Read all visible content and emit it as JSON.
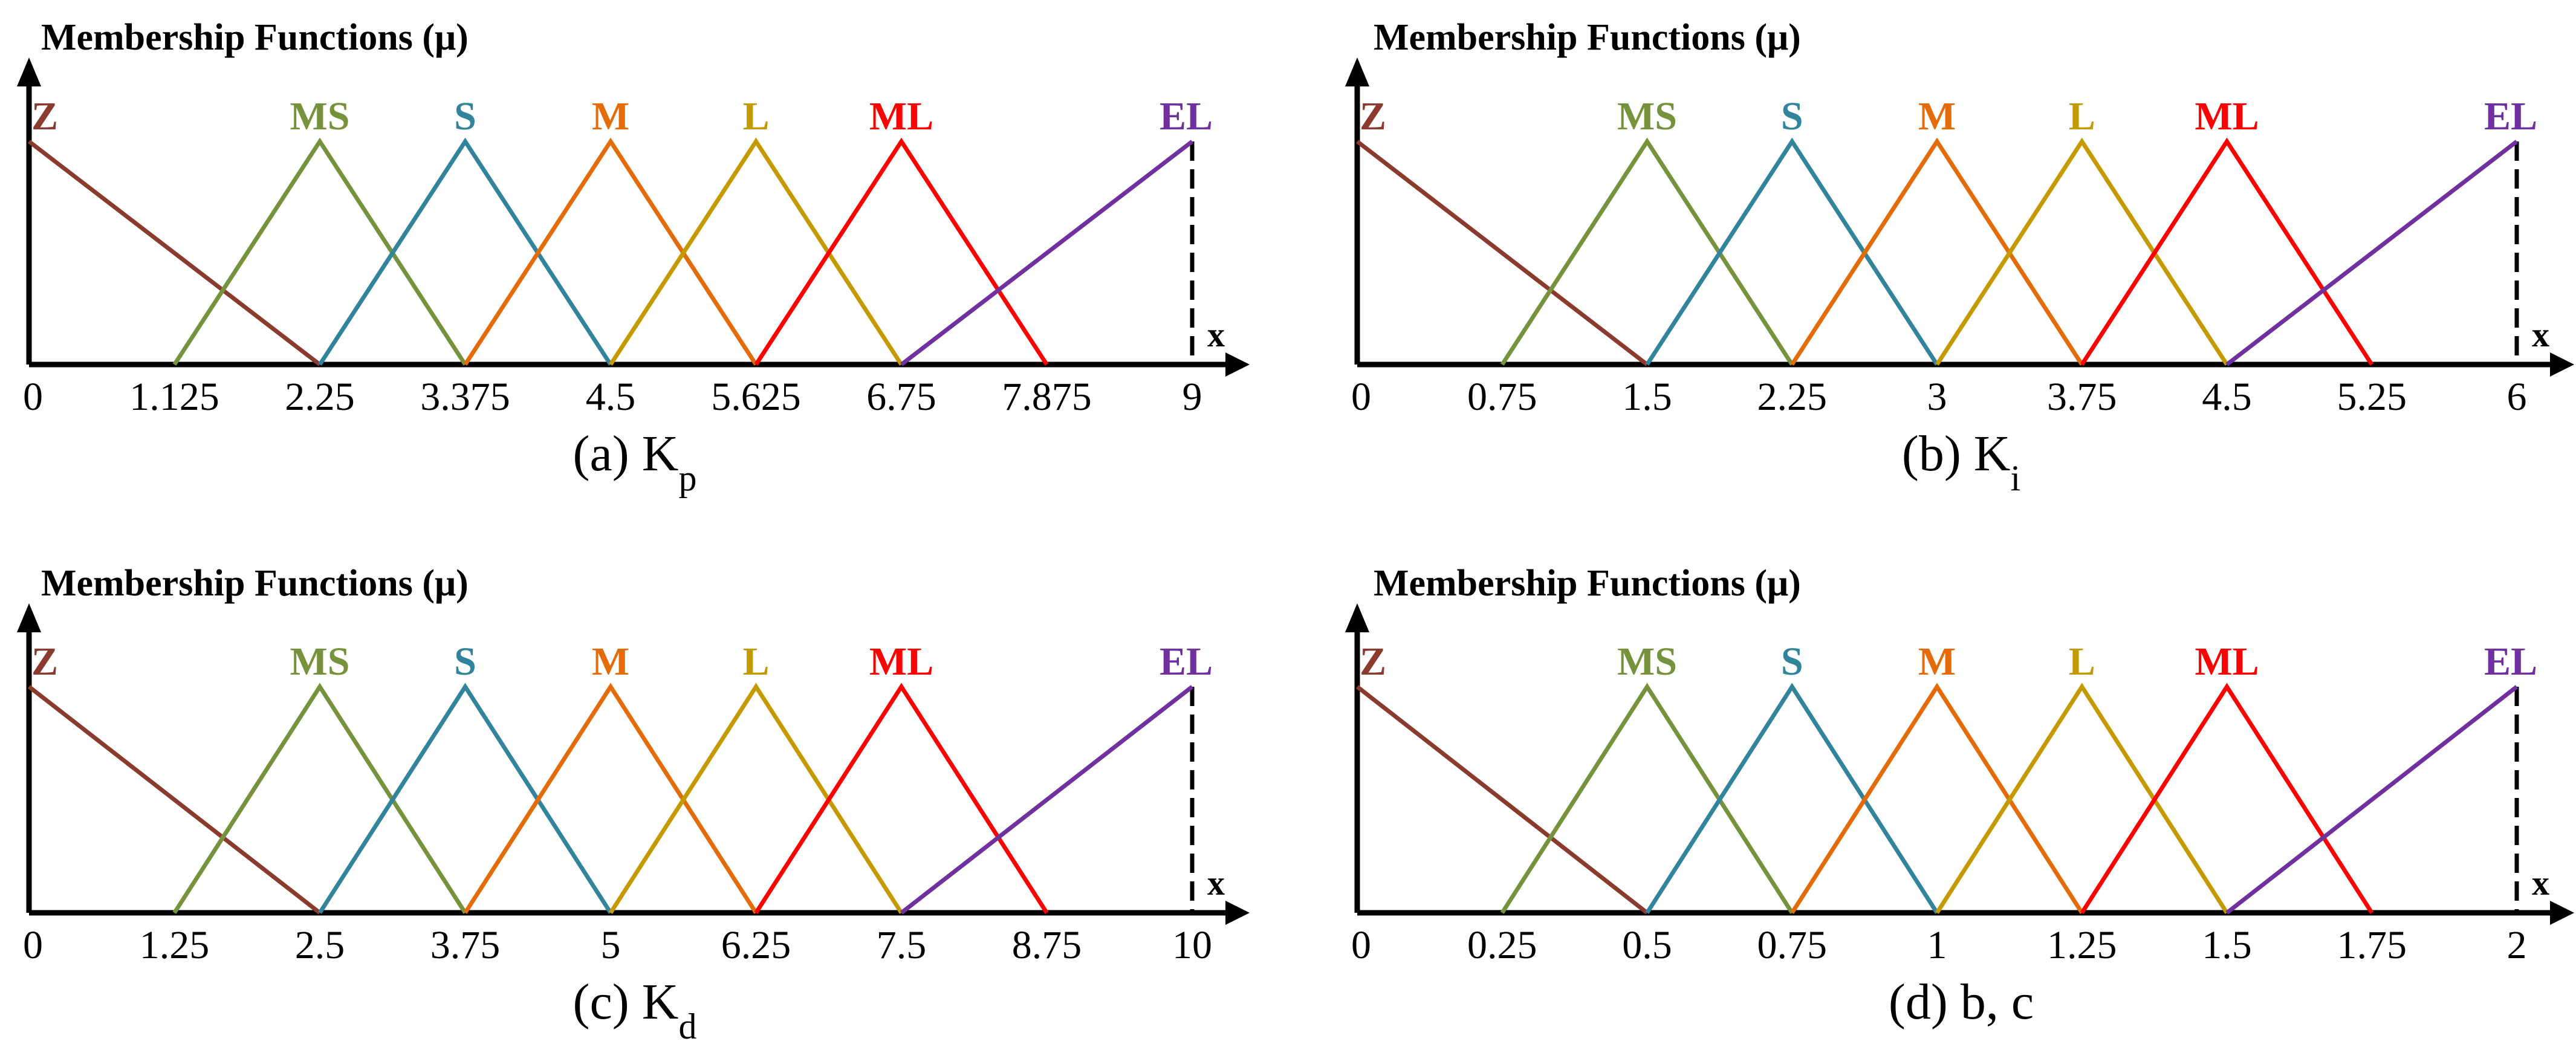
{
  "colors": {
    "Z": "#8b3a2e",
    "MS": "#76923c",
    "S": "#31849b",
    "M": "#e36c09",
    "L": "#c49a00",
    "ML": "#ff0000",
    "EL": "#7030a0",
    "axis": "#000000"
  },
  "chart_data": [
    {
      "type": "line",
      "ylabel": "Membership Functions (μ)",
      "xlabel": "x",
      "caption": {
        "prefix": "(a) K",
        "sub": "p"
      },
      "xlim": [
        0,
        9
      ],
      "ylim": [
        0,
        1
      ],
      "tick_labels": [
        "0",
        "1.125",
        "2.25",
        "3.375",
        "4.5",
        "5.625",
        "6.75",
        "7.875",
        "9"
      ],
      "series": [
        {
          "name": "Z",
          "x": [
            0,
            2.25
          ],
          "y": [
            1,
            0
          ]
        },
        {
          "name": "MS",
          "x": [
            1.125,
            2.25,
            3.375
          ],
          "y": [
            0,
            1,
            0
          ]
        },
        {
          "name": "S",
          "x": [
            2.25,
            3.375,
            4.5
          ],
          "y": [
            0,
            1,
            0
          ]
        },
        {
          "name": "M",
          "x": [
            3.375,
            4.5,
            5.625
          ],
          "y": [
            0,
            1,
            0
          ]
        },
        {
          "name": "L",
          "x": [
            4.5,
            5.625,
            6.75
          ],
          "y": [
            0,
            1,
            0
          ]
        },
        {
          "name": "ML",
          "x": [
            5.625,
            6.75,
            7.875
          ],
          "y": [
            0,
            1,
            0
          ]
        },
        {
          "name": "EL",
          "x": [
            6.75,
            9
          ],
          "y": [
            0,
            1
          ]
        }
      ]
    },
    {
      "type": "line",
      "ylabel": "Membership Functions (μ)",
      "xlabel": "x",
      "caption": {
        "prefix": "(b) K",
        "sub": "i"
      },
      "xlim": [
        0,
        6
      ],
      "ylim": [
        0,
        1
      ],
      "tick_labels": [
        "0",
        "0.75",
        "1.5",
        "2.25",
        "3",
        "3.75",
        "4.5",
        "5.25",
        "6"
      ],
      "series": [
        {
          "name": "Z",
          "x": [
            0,
            1.5
          ],
          "y": [
            1,
            0
          ]
        },
        {
          "name": "MS",
          "x": [
            0.75,
            1.5,
            2.25
          ],
          "y": [
            0,
            1,
            0
          ]
        },
        {
          "name": "S",
          "x": [
            1.5,
            2.25,
            3
          ],
          "y": [
            0,
            1,
            0
          ]
        },
        {
          "name": "M",
          "x": [
            2.25,
            3,
            3.75
          ],
          "y": [
            0,
            1,
            0
          ]
        },
        {
          "name": "L",
          "x": [
            3,
            3.75,
            4.5
          ],
          "y": [
            0,
            1,
            0
          ]
        },
        {
          "name": "ML",
          "x": [
            3.75,
            4.5,
            5.25
          ],
          "y": [
            0,
            1,
            0
          ]
        },
        {
          "name": "EL",
          "x": [
            4.5,
            6
          ],
          "y": [
            0,
            1
          ]
        }
      ]
    },
    {
      "type": "line",
      "ylabel": "Membership Functions (μ)",
      "xlabel": "x",
      "caption": {
        "prefix": "(c) K",
        "sub": "d"
      },
      "xlim": [
        0,
        10
      ],
      "ylim": [
        0,
        1
      ],
      "tick_labels": [
        "0",
        "1.25",
        "2.5",
        "3.75",
        "5",
        "6.25",
        "7.5",
        "8.75",
        "10"
      ],
      "series": [
        {
          "name": "Z",
          "x": [
            0,
            2.5
          ],
          "y": [
            1,
            0
          ]
        },
        {
          "name": "MS",
          "x": [
            1.25,
            2.5,
            3.75
          ],
          "y": [
            0,
            1,
            0
          ]
        },
        {
          "name": "S",
          "x": [
            2.5,
            3.75,
            5
          ],
          "y": [
            0,
            1,
            0
          ]
        },
        {
          "name": "M",
          "x": [
            3.75,
            5,
            6.25
          ],
          "y": [
            0,
            1,
            0
          ]
        },
        {
          "name": "L",
          "x": [
            5,
            6.25,
            7.5
          ],
          "y": [
            0,
            1,
            0
          ]
        },
        {
          "name": "ML",
          "x": [
            6.25,
            7.5,
            8.75
          ],
          "y": [
            0,
            1,
            0
          ]
        },
        {
          "name": "EL",
          "x": [
            7.5,
            10
          ],
          "y": [
            0,
            1
          ]
        }
      ]
    },
    {
      "type": "line",
      "ylabel": "Membership Functions (μ)",
      "xlabel": "x",
      "caption": {
        "prefix": "(d) b, c",
        "sub": ""
      },
      "xlim": [
        0,
        2
      ],
      "ylim": [
        0,
        1
      ],
      "tick_labels": [
        "0",
        "0.25",
        "0.5",
        "0.75",
        "1",
        "1.25",
        "1.5",
        "1.75",
        "2"
      ],
      "series": [
        {
          "name": "Z",
          "x": [
            0,
            0.5
          ],
          "y": [
            1,
            0
          ]
        },
        {
          "name": "MS",
          "x": [
            0.25,
            0.5,
            0.75
          ],
          "y": [
            0,
            1,
            0
          ]
        },
        {
          "name": "S",
          "x": [
            0.5,
            0.75,
            1
          ],
          "y": [
            0,
            1,
            0
          ]
        },
        {
          "name": "M",
          "x": [
            0.75,
            1,
            1.25
          ],
          "y": [
            0,
            1,
            0
          ]
        },
        {
          "name": "L",
          "x": [
            1,
            1.25,
            1.5
          ],
          "y": [
            0,
            1,
            0
          ]
        },
        {
          "name": "ML",
          "x": [
            1.25,
            1.5,
            1.75
          ],
          "y": [
            0,
            1,
            0
          ]
        },
        {
          "name": "EL",
          "x": [
            1.5,
            2
          ],
          "y": [
            0,
            1
          ]
        }
      ]
    }
  ]
}
